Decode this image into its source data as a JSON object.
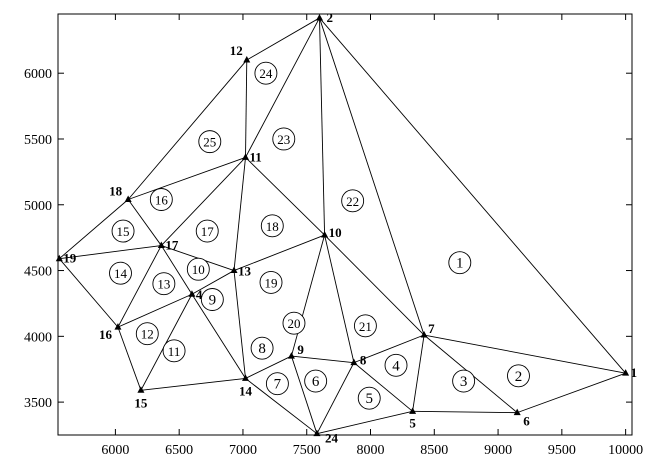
{
  "chart_data": {
    "type": "scatter",
    "xlim": [
      5550,
      10050
    ],
    "ylim": [
      3250,
      6450
    ],
    "x_ticks": [
      6000,
      6500,
      7000,
      7500,
      8000,
      8500,
      9000,
      9500,
      10000
    ],
    "y_ticks": [
      3500,
      4000,
      4500,
      5000,
      5500,
      6000
    ],
    "grid": false,
    "nodes": [
      {
        "id": "1",
        "x": 10000,
        "y": 3720
      },
      {
        "id": "2",
        "x": 7600,
        "y": 6420
      },
      {
        "id": "5",
        "x": 8330,
        "y": 3430
      },
      {
        "id": "6",
        "x": 9150,
        "y": 3420
      },
      {
        "id": "7",
        "x": 8420,
        "y": 4010
      },
      {
        "id": "8",
        "x": 7870,
        "y": 3800
      },
      {
        "id": "9",
        "x": 7380,
        "y": 3850
      },
      {
        "id": "10",
        "x": 7640,
        "y": 4770
      },
      {
        "id": "11",
        "x": 7020,
        "y": 5360
      },
      {
        "id": "12",
        "x": 7030,
        "y": 6100
      },
      {
        "id": "13",
        "x": 6930,
        "y": 4500
      },
      {
        "id": "4",
        "x": 6600,
        "y": 4320
      },
      {
        "id": "14",
        "x": 7020,
        "y": 3680
      },
      {
        "id": "15",
        "x": 6200,
        "y": 3590
      },
      {
        "id": "16",
        "x": 6020,
        "y": 4070
      },
      {
        "id": "17",
        "x": 6360,
        "y": 4690
      },
      {
        "id": "18",
        "x": 6100,
        "y": 5040
      },
      {
        "id": "19",
        "x": 5560,
        "y": 4590
      },
      {
        "id": "24",
        "x": 7580,
        "y": 3260
      }
    ],
    "edges": [
      [
        "1",
        "2"
      ],
      [
        "1",
        "7"
      ],
      [
        "1",
        "6"
      ],
      [
        "6",
        "5"
      ],
      [
        "6",
        "7"
      ],
      [
        "5",
        "7"
      ],
      [
        "5",
        "8"
      ],
      [
        "5",
        "24"
      ],
      [
        "7",
        "8"
      ],
      [
        "7",
        "10"
      ],
      [
        "7",
        "2"
      ],
      [
        "2",
        "10"
      ],
      [
        "2",
        "11"
      ],
      [
        "2",
        "12"
      ],
      [
        "12",
        "11"
      ],
      [
        "12",
        "18"
      ],
      [
        "11",
        "18"
      ],
      [
        "11",
        "17"
      ],
      [
        "11",
        "13"
      ],
      [
        "11",
        "10"
      ],
      [
        "18",
        "17"
      ],
      [
        "18",
        "19"
      ],
      [
        "19",
        "17"
      ],
      [
        "19",
        "16"
      ],
      [
        "17",
        "16"
      ],
      [
        "17",
        "13"
      ],
      [
        "17",
        "4"
      ],
      [
        "16",
        "15"
      ],
      [
        "16",
        "4"
      ],
      [
        "4",
        "15"
      ],
      [
        "4",
        "13"
      ],
      [
        "4",
        "14"
      ],
      [
        "15",
        "14"
      ],
      [
        "13",
        "10"
      ],
      [
        "13",
        "14"
      ],
      [
        "14",
        "9"
      ],
      [
        "14",
        "24"
      ],
      [
        "9",
        "10"
      ],
      [
        "9",
        "8"
      ],
      [
        "9",
        "24"
      ],
      [
        "8",
        "24"
      ],
      [
        "10",
        "8"
      ]
    ],
    "elements": [
      {
        "id": "1",
        "x": 8700,
        "y": 4560
      },
      {
        "id": "2",
        "x": 9160,
        "y": 3700
      },
      {
        "id": "3",
        "x": 8730,
        "y": 3660
      },
      {
        "id": "4",
        "x": 8200,
        "y": 3780
      },
      {
        "id": "5",
        "x": 7990,
        "y": 3530
      },
      {
        "id": "6",
        "x": 7570,
        "y": 3660
      },
      {
        "id": "7",
        "x": 7270,
        "y": 3640
      },
      {
        "id": "8",
        "x": 7150,
        "y": 3910
      },
      {
        "id": "9",
        "x": 6760,
        "y": 4280
      },
      {
        "id": "10",
        "x": 6650,
        "y": 4510
      },
      {
        "id": "11",
        "x": 6460,
        "y": 3890
      },
      {
        "id": "12",
        "x": 6250,
        "y": 4020
      },
      {
        "id": "13",
        "x": 6380,
        "y": 4400
      },
      {
        "id": "14",
        "x": 6040,
        "y": 4480
      },
      {
        "id": "15",
        "x": 6060,
        "y": 4800
      },
      {
        "id": "16",
        "x": 6360,
        "y": 5040
      },
      {
        "id": "17",
        "x": 6720,
        "y": 4800
      },
      {
        "id": "18",
        "x": 7230,
        "y": 4840
      },
      {
        "id": "19",
        "x": 7220,
        "y": 4410
      },
      {
        "id": "20",
        "x": 7400,
        "y": 4100
      },
      {
        "id": "21",
        "x": 7960,
        "y": 4080
      },
      {
        "id": "22",
        "x": 7860,
        "y": 5030
      },
      {
        "id": "23",
        "x": 7320,
        "y": 5500
      },
      {
        "id": "24",
        "x": 7180,
        "y": 6000
      },
      {
        "id": "25",
        "x": 6740,
        "y": 5480
      }
    ]
  }
}
